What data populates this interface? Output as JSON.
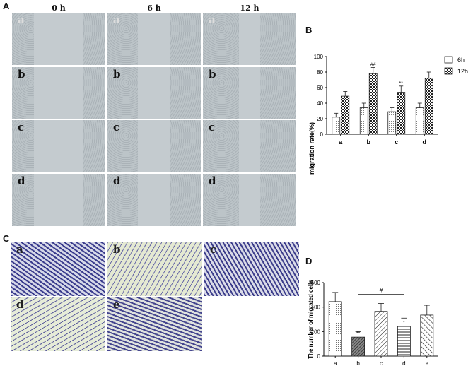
{
  "panels": {
    "A": "A",
    "B": "B",
    "C": "C",
    "D": "D"
  },
  "panelA": {
    "columns": [
      "0 h",
      "6 h",
      "12 h"
    ],
    "rows": [
      "a",
      "b",
      "c",
      "d"
    ]
  },
  "panelC": {
    "tiles": [
      "a",
      "b",
      "c",
      "d",
      "e"
    ]
  },
  "chart_data": [
    {
      "type": "bar",
      "categories": [
        "a",
        "b",
        "c",
        "d"
      ],
      "series": [
        {
          "name": "6h",
          "values": [
            22,
            34,
            29,
            34
          ],
          "errors": [
            5,
            6,
            5,
            6
          ]
        },
        {
          "name": "12h",
          "values": [
            49,
            78,
            54,
            72
          ],
          "errors": [
            6,
            8,
            8,
            8
          ]
        }
      ],
      "annotations": [
        {
          "category": "b",
          "series": "12h",
          "text": "##"
        },
        {
          "category": "c",
          "series": "12h",
          "text": "**"
        }
      ],
      "xlabel": "",
      "ylabel": "migration rate(%)",
      "ylim": [
        0,
        100
      ],
      "yticks": [
        0,
        20,
        40,
        60,
        80,
        100
      ],
      "legend": "top-right"
    },
    {
      "type": "bar",
      "categories": [
        "a",
        "b",
        "c",
        "d",
        "e"
      ],
      "values": [
        445,
        155,
        365,
        245,
        335
      ],
      "errors": [
        75,
        45,
        65,
        65,
        80
      ],
      "annotations": [
        {
          "category": "b",
          "text": "**"
        },
        {
          "category": "d",
          "text": "*"
        },
        {
          "bracket": [
            "b",
            "d"
          ],
          "text": "#"
        }
      ],
      "xlabel": "",
      "ylabel": "The number of migrated cells",
      "ylim": [
        0,
        600
      ],
      "yticks": [
        0,
        200,
        400,
        600
      ]
    }
  ]
}
